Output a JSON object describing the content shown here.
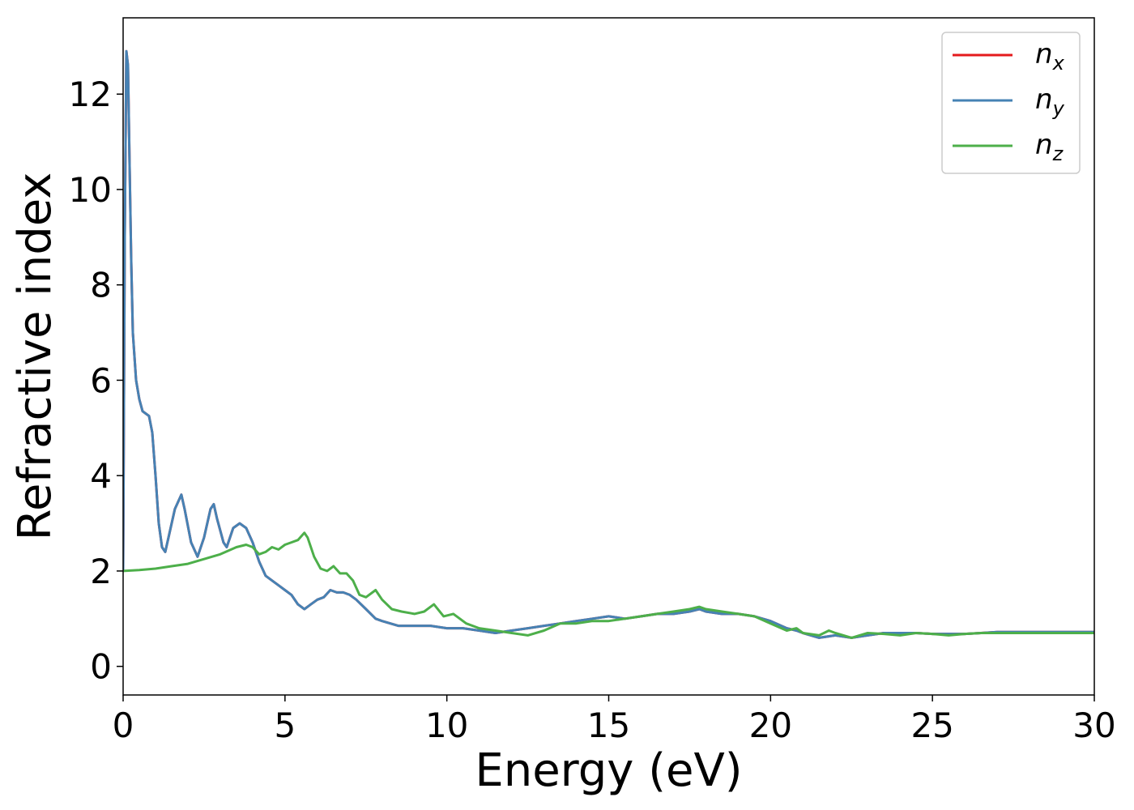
{
  "chart_data": {
    "type": "line",
    "xlabel": "Energy (eV)",
    "ylabel": "Refractive index",
    "xlim": [
      0,
      30
    ],
    "ylim": [
      -0.6,
      13.6
    ],
    "xticks": [
      0,
      5,
      10,
      15,
      20,
      25,
      30
    ],
    "yticks": [
      0,
      2,
      4,
      6,
      8,
      10,
      12
    ],
    "grid": false,
    "legend_position": "top-right",
    "series": [
      {
        "name": "n",
        "subscript": "x",
        "color": "#e41a1c",
        "x": [
          0,
          0.05,
          0.1,
          0.15,
          0.2,
          0.25,
          0.3,
          0.4,
          0.5,
          0.6,
          0.7,
          0.8,
          0.9,
          1.0,
          1.1,
          1.2,
          1.3,
          1.4,
          1.6,
          1.8,
          1.9,
          2.1,
          2.3,
          2.5,
          2.7,
          2.8,
          2.9,
          3.1,
          3.2,
          3.4,
          3.6,
          3.8,
          4.0,
          4.2,
          4.4,
          4.6,
          4.8,
          5.0,
          5.2,
          5.4,
          5.6,
          5.8,
          6.0,
          6.2,
          6.4,
          6.6,
          6.8,
          7.0,
          7.2,
          7.5,
          7.8,
          8.0,
          8.5,
          9.0,
          9.5,
          10.0,
          10.5,
          11.0,
          11.5,
          12.0,
          12.5,
          13.0,
          13.5,
          14.0,
          14.5,
          15.0,
          15.5,
          16.0,
          16.5,
          17.0,
          17.5,
          17.8,
          18.0,
          18.5,
          19.0,
          19.5,
          20.0,
          20.5,
          20.8,
          21.0,
          21.5,
          22.0,
          22.5,
          23.0,
          23.5,
          24.0,
          24.5,
          25.0,
          25.5,
          26.0,
          26.5,
          27.0,
          27.5,
          28.0,
          28.5,
          29.0,
          29.5,
          30.0
        ],
        "values": [
          2.0,
          9.0,
          12.9,
          12.6,
          10.5,
          8.5,
          7.0,
          6.0,
          5.6,
          5.35,
          5.3,
          5.25,
          4.9,
          4.0,
          3.0,
          2.5,
          2.4,
          2.7,
          3.3,
          3.6,
          3.3,
          2.6,
          2.3,
          2.7,
          3.3,
          3.4,
          3.1,
          2.6,
          2.5,
          2.9,
          3.0,
          2.9,
          2.6,
          2.2,
          1.9,
          1.8,
          1.7,
          1.6,
          1.5,
          1.3,
          1.2,
          1.3,
          1.4,
          1.45,
          1.6,
          1.55,
          1.55,
          1.5,
          1.4,
          1.2,
          1.0,
          0.95,
          0.85,
          0.85,
          0.85,
          0.8,
          0.8,
          0.75,
          0.7,
          0.75,
          0.8,
          0.85,
          0.9,
          0.95,
          1.0,
          1.05,
          1.0,
          1.05,
          1.1,
          1.1,
          1.15,
          1.2,
          1.15,
          1.1,
          1.1,
          1.05,
          0.95,
          0.8,
          0.75,
          0.7,
          0.6,
          0.65,
          0.6,
          0.65,
          0.7,
          0.7,
          0.7,
          0.68,
          0.68,
          0.68,
          0.7,
          0.72,
          0.72,
          0.72,
          0.72,
          0.72,
          0.72,
          0.72
        ]
      },
      {
        "name": "n",
        "subscript": "y",
        "color": "#4682b4",
        "x": [
          0,
          0.05,
          0.1,
          0.15,
          0.2,
          0.25,
          0.3,
          0.4,
          0.5,
          0.6,
          0.7,
          0.8,
          0.9,
          1.0,
          1.1,
          1.2,
          1.3,
          1.4,
          1.6,
          1.8,
          1.9,
          2.1,
          2.3,
          2.5,
          2.7,
          2.8,
          2.9,
          3.1,
          3.2,
          3.4,
          3.6,
          3.8,
          4.0,
          4.2,
          4.4,
          4.6,
          4.8,
          5.0,
          5.2,
          5.4,
          5.6,
          5.8,
          6.0,
          6.2,
          6.4,
          6.6,
          6.8,
          7.0,
          7.2,
          7.5,
          7.8,
          8.0,
          8.5,
          9.0,
          9.5,
          10.0,
          10.5,
          11.0,
          11.5,
          12.0,
          12.5,
          13.0,
          13.5,
          14.0,
          14.5,
          15.0,
          15.5,
          16.0,
          16.5,
          17.0,
          17.5,
          17.8,
          18.0,
          18.5,
          19.0,
          19.5,
          20.0,
          20.5,
          20.8,
          21.0,
          21.5,
          22.0,
          22.5,
          23.0,
          23.5,
          24.0,
          24.5,
          25.0,
          25.5,
          26.0,
          26.5,
          27.0,
          27.5,
          28.0,
          28.5,
          29.0,
          29.5,
          30.0
        ],
        "values": [
          2.0,
          9.0,
          12.9,
          12.6,
          10.5,
          8.5,
          7.0,
          6.0,
          5.6,
          5.35,
          5.3,
          5.25,
          4.9,
          4.0,
          3.0,
          2.5,
          2.4,
          2.7,
          3.3,
          3.6,
          3.3,
          2.6,
          2.3,
          2.7,
          3.3,
          3.4,
          3.1,
          2.6,
          2.5,
          2.9,
          3.0,
          2.9,
          2.6,
          2.2,
          1.9,
          1.8,
          1.7,
          1.6,
          1.5,
          1.3,
          1.2,
          1.3,
          1.4,
          1.45,
          1.6,
          1.55,
          1.55,
          1.5,
          1.4,
          1.2,
          1.0,
          0.95,
          0.85,
          0.85,
          0.85,
          0.8,
          0.8,
          0.75,
          0.7,
          0.75,
          0.8,
          0.85,
          0.9,
          0.95,
          1.0,
          1.05,
          1.0,
          1.05,
          1.1,
          1.1,
          1.15,
          1.2,
          1.15,
          1.1,
          1.1,
          1.05,
          0.95,
          0.8,
          0.75,
          0.7,
          0.6,
          0.65,
          0.6,
          0.65,
          0.7,
          0.7,
          0.7,
          0.68,
          0.68,
          0.68,
          0.7,
          0.72,
          0.72,
          0.72,
          0.72,
          0.72,
          0.72,
          0.72
        ]
      },
      {
        "name": "n",
        "subscript": "z",
        "color": "#4daf4a",
        "x": [
          0,
          0.5,
          1.0,
          1.5,
          2.0,
          2.5,
          3.0,
          3.5,
          3.8,
          4.0,
          4.2,
          4.4,
          4.6,
          4.8,
          5.0,
          5.2,
          5.4,
          5.6,
          5.7,
          5.9,
          6.1,
          6.3,
          6.5,
          6.7,
          6.9,
          7.1,
          7.3,
          7.5,
          7.8,
          8.0,
          8.3,
          8.6,
          9.0,
          9.3,
          9.6,
          9.9,
          10.2,
          10.6,
          11.0,
          11.5,
          12.0,
          12.5,
          13.0,
          13.5,
          14.0,
          14.5,
          15.0,
          15.5,
          16.0,
          16.5,
          17.0,
          17.5,
          17.8,
          18.0,
          18.5,
          19.0,
          19.5,
          20.0,
          20.5,
          20.8,
          21.0,
          21.5,
          21.8,
          22.0,
          22.5,
          23.0,
          23.5,
          24.0,
          24.5,
          25.0,
          25.5,
          26.0,
          26.5,
          27.0,
          27.5,
          28.0,
          28.5,
          29.0,
          29.5,
          30.0
        ],
        "values": [
          2.0,
          2.02,
          2.05,
          2.1,
          2.15,
          2.25,
          2.35,
          2.5,
          2.55,
          2.5,
          2.35,
          2.4,
          2.5,
          2.45,
          2.55,
          2.6,
          2.65,
          2.8,
          2.7,
          2.3,
          2.05,
          2.0,
          2.1,
          1.95,
          1.95,
          1.8,
          1.5,
          1.45,
          1.6,
          1.4,
          1.2,
          1.15,
          1.1,
          1.15,
          1.3,
          1.05,
          1.1,
          0.9,
          0.8,
          0.75,
          0.7,
          0.65,
          0.75,
          0.9,
          0.9,
          0.95,
          0.95,
          1.0,
          1.05,
          1.1,
          1.15,
          1.2,
          1.25,
          1.2,
          1.15,
          1.1,
          1.05,
          0.9,
          0.75,
          0.8,
          0.7,
          0.65,
          0.75,
          0.7,
          0.6,
          0.7,
          0.68,
          0.65,
          0.7,
          0.68,
          0.65,
          0.68,
          0.7,
          0.7,
          0.7,
          0.7,
          0.7,
          0.7,
          0.7,
          0.7
        ]
      }
    ]
  }
}
